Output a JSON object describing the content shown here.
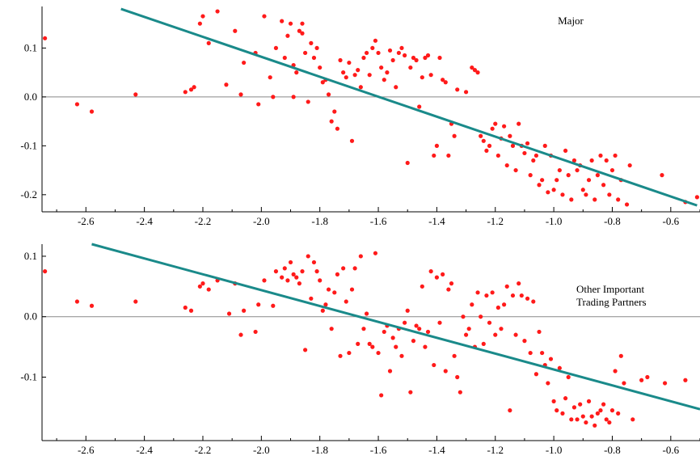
{
  "chart_data": [
    {
      "type": "scatter",
      "annotation": "Major",
      "xlim": [
        -2.75,
        -0.5
      ],
      "ylim": [
        -0.235,
        0.185
      ],
      "x_ticks": [
        -2.6,
        -2.4,
        -2.2,
        -2.0,
        -1.8,
        -1.6,
        -1.4,
        -1.2,
        -1.0,
        -0.8,
        -0.6
      ],
      "x_tick_labels": [
        "-2.6",
        "-2.4",
        "-2.2",
        "-2.0",
        "-1.8",
        "-1.6",
        "-1.4",
        "-1.2",
        "-1.0",
        "-0.8",
        "-0.6"
      ],
      "y_ticks": [
        0.1,
        0.0,
        -0.1,
        -0.2
      ],
      "y_tick_labels": [
        "0.1",
        "0.0",
        "-0.1",
        "-0.2"
      ],
      "zero_line": 0.0,
      "fit_line": [
        [
          -2.48,
          0.18
        ],
        [
          -0.51,
          -0.222
        ]
      ],
      "colors": {
        "points": "#ff1a1a",
        "fit": "#1a8a8a"
      },
      "points": [
        [
          -2.74,
          0.12
        ],
        [
          -2.63,
          -0.015
        ],
        [
          -2.58,
          -0.03
        ],
        [
          -2.43,
          0.005
        ],
        [
          -2.26,
          0.01
        ],
        [
          -2.24,
          0.015
        ],
        [
          -2.23,
          0.02
        ],
        [
          -2.21,
          0.15
        ],
        [
          -2.2,
          0.165
        ],
        [
          -2.18,
          0.11
        ],
        [
          -2.15,
          0.175
        ],
        [
          -2.12,
          0.025
        ],
        [
          -2.09,
          0.135
        ],
        [
          -2.06,
          0.07
        ],
        [
          -2.07,
          0.005
        ],
        [
          -2.02,
          0.09
        ],
        [
          -2.01,
          -0.015
        ],
        [
          -1.99,
          0.165
        ],
        [
          -1.97,
          0.04
        ],
        [
          -1.96,
          0.0
        ],
        [
          -1.95,
          0.1
        ],
        [
          -1.93,
          0.155
        ],
        [
          -1.92,
          0.08
        ],
        [
          -1.91,
          0.125
        ],
        [
          -1.9,
          0.15
        ],
        [
          -1.89,
          0.065
        ],
        [
          -1.89,
          0.0
        ],
        [
          -1.88,
          0.05
        ],
        [
          -1.87,
          0.135
        ],
        [
          -1.86,
          0.15
        ],
        [
          -1.86,
          0.13
        ],
        [
          -1.85,
          0.09
        ],
        [
          -1.84,
          -0.01
        ],
        [
          -1.83,
          0.11
        ],
        [
          -1.82,
          0.08
        ],
        [
          -1.81,
          0.1
        ],
        [
          -1.8,
          0.06
        ],
        [
          -1.79,
          0.03
        ],
        [
          -1.78,
          0.035
        ],
        [
          -1.77,
          0.005
        ],
        [
          -1.76,
          -0.05
        ],
        [
          -1.75,
          -0.03
        ],
        [
          -1.74,
          -0.065
        ],
        [
          -1.73,
          0.075
        ],
        [
          -1.72,
          0.05
        ],
        [
          -1.71,
          0.04
        ],
        [
          -1.7,
          0.07
        ],
        [
          -1.69,
          -0.09
        ],
        [
          -1.68,
          0.045
        ],
        [
          -1.67,
          0.055
        ],
        [
          -1.66,
          0.02
        ],
        [
          -1.65,
          0.08
        ],
        [
          -1.64,
          0.09
        ],
        [
          -1.63,
          0.045
        ],
        [
          -1.62,
          0.1
        ],
        [
          -1.61,
          0.115
        ],
        [
          -1.6,
          0.09
        ],
        [
          -1.59,
          0.06
        ],
        [
          -1.58,
          0.035
        ],
        [
          -1.57,
          0.05
        ],
        [
          -1.56,
          0.095
        ],
        [
          -1.55,
          0.075
        ],
        [
          -1.54,
          0.02
        ],
        [
          -1.53,
          0.09
        ],
        [
          -1.52,
          0.1
        ],
        [
          -1.51,
          0.085
        ],
        [
          -1.5,
          -0.135
        ],
        [
          -1.49,
          0.06
        ],
        [
          -1.48,
          0.08
        ],
        [
          -1.47,
          0.075
        ],
        [
          -1.46,
          -0.02
        ],
        [
          -1.45,
          0.04
        ],
        [
          -1.44,
          0.08
        ],
        [
          -1.43,
          0.085
        ],
        [
          -1.42,
          0.045
        ],
        [
          -1.41,
          -0.12
        ],
        [
          -1.4,
          -0.1
        ],
        [
          -1.39,
          0.08
        ],
        [
          -1.38,
          0.035
        ],
        [
          -1.37,
          0.03
        ],
        [
          -1.36,
          -0.12
        ],
        [
          -1.35,
          -0.055
        ],
        [
          -1.34,
          -0.08
        ],
        [
          -1.33,
          0.015
        ],
        [
          -1.3,
          0.01
        ],
        [
          -1.28,
          0.06
        ],
        [
          -1.27,
          0.055
        ],
        [
          -1.26,
          0.05
        ],
        [
          -1.25,
          -0.08
        ],
        [
          -1.24,
          -0.09
        ],
        [
          -1.23,
          -0.11
        ],
        [
          -1.22,
          -0.1
        ],
        [
          -1.21,
          -0.065
        ],
        [
          -1.2,
          -0.055
        ],
        [
          -1.19,
          -0.12
        ],
        [
          -1.18,
          -0.085
        ],
        [
          -1.17,
          -0.06
        ],
        [
          -1.16,
          -0.14
        ],
        [
          -1.15,
          -0.08
        ],
        [
          -1.14,
          -0.1
        ],
        [
          -1.13,
          -0.15
        ],
        [
          -1.12,
          -0.055
        ],
        [
          -1.11,
          -0.1
        ],
        [
          -1.1,
          -0.115
        ],
        [
          -1.09,
          -0.095
        ],
        [
          -1.08,
          -0.16
        ],
        [
          -1.07,
          -0.13
        ],
        [
          -1.06,
          -0.12
        ],
        [
          -1.05,
          -0.18
        ],
        [
          -1.04,
          -0.17
        ],
        [
          -1.03,
          -0.1
        ],
        [
          -1.02,
          -0.195
        ],
        [
          -1.01,
          -0.12
        ],
        [
          -1.0,
          -0.19
        ],
        [
          -0.99,
          -0.17
        ],
        [
          -0.98,
          -0.15
        ],
        [
          -0.97,
          -0.2
        ],
        [
          -0.96,
          -0.11
        ],
        [
          -0.95,
          -0.16
        ],
        [
          -0.94,
          -0.21
        ],
        [
          -0.93,
          -0.13
        ],
        [
          -0.92,
          -0.15
        ],
        [
          -0.91,
          -0.14
        ],
        [
          -0.9,
          -0.19
        ],
        [
          -0.89,
          -0.2
        ],
        [
          -0.88,
          -0.17
        ],
        [
          -0.87,
          -0.13
        ],
        [
          -0.86,
          -0.21
        ],
        [
          -0.85,
          -0.16
        ],
        [
          -0.84,
          -0.12
        ],
        [
          -0.83,
          -0.18
        ],
        [
          -0.82,
          -0.13
        ],
        [
          -0.81,
          -0.2
        ],
        [
          -0.8,
          -0.15
        ],
        [
          -0.79,
          -0.12
        ],
        [
          -0.78,
          -0.21
        ],
        [
          -0.77,
          -0.17
        ],
        [
          -0.75,
          -0.22
        ],
        [
          -0.74,
          -0.14
        ],
        [
          -0.63,
          -0.16
        ],
        [
          -0.55,
          -0.215
        ],
        [
          -0.51,
          -0.205
        ]
      ]
    },
    {
      "type": "scatter",
      "annotation": "Other Important Trading Partners",
      "annotation_lines": [
        "Other Important",
        "Trading Partners"
      ],
      "xlim": [
        -2.75,
        -0.5
      ],
      "ylim": [
        -0.205,
        0.12
      ],
      "x_ticks": [
        -2.6,
        -2.4,
        -2.2,
        -2.0,
        -1.8,
        -1.6,
        -1.4,
        -1.2,
        -1.0,
        -0.8,
        -0.6
      ],
      "x_tick_labels": [
        "-2.6",
        "-2.4",
        "-2.2",
        "-2.0",
        "-1.8",
        "-1.6",
        "-1.4",
        "-1.2",
        "-1.0",
        "-0.8",
        "-0.6"
      ],
      "y_ticks": [
        0.1,
        0.0,
        -0.1
      ],
      "y_tick_labels": [
        "0.1",
        "0.0",
        "-0.1"
      ],
      "zero_line": 0.0,
      "fit_line": [
        [
          -2.58,
          0.12
        ],
        [
          -0.5,
          -0.153
        ]
      ],
      "colors": {
        "points": "#ff1a1a",
        "fit": "#1a8a8a"
      },
      "points": [
        [
          -2.74,
          0.075
        ],
        [
          -2.63,
          0.025
        ],
        [
          -2.58,
          0.018
        ],
        [
          -2.43,
          0.025
        ],
        [
          -2.26,
          0.015
        ],
        [
          -2.24,
          0.01
        ],
        [
          -2.21,
          0.05
        ],
        [
          -2.2,
          0.055
        ],
        [
          -2.18,
          0.045
        ],
        [
          -2.15,
          0.06
        ],
        [
          -2.11,
          0.005
        ],
        [
          -2.09,
          0.055
        ],
        [
          -2.06,
          0.01
        ],
        [
          -2.07,
          -0.03
        ],
        [
          -2.02,
          -0.025
        ],
        [
          -2.01,
          0.02
        ],
        [
          -1.99,
          0.06
        ],
        [
          -1.96,
          0.018
        ],
        [
          -1.95,
          0.075
        ],
        [
          -1.93,
          0.065
        ],
        [
          -1.92,
          0.08
        ],
        [
          -1.91,
          0.06
        ],
        [
          -1.9,
          0.09
        ],
        [
          -1.89,
          0.07
        ],
        [
          -1.88,
          0.065
        ],
        [
          -1.87,
          0.055
        ],
        [
          -1.86,
          0.075
        ],
        [
          -1.85,
          -0.055
        ],
        [
          -1.84,
          0.1
        ],
        [
          -1.83,
          0.03
        ],
        [
          -1.82,
          0.09
        ],
        [
          -1.81,
          0.075
        ],
        [
          -1.8,
          0.06
        ],
        [
          -1.79,
          0.01
        ],
        [
          -1.78,
          0.02
        ],
        [
          -1.77,
          0.045
        ],
        [
          -1.76,
          -0.02
        ],
        [
          -1.75,
          0.04
        ],
        [
          -1.74,
          0.07
        ],
        [
          -1.73,
          -0.065
        ],
        [
          -1.72,
          0.08
        ],
        [
          -1.71,
          0.025
        ],
        [
          -1.7,
          -0.06
        ],
        [
          -1.69,
          0.045
        ],
        [
          -1.68,
          0.08
        ],
        [
          -1.67,
          -0.045
        ],
        [
          -1.66,
          0.1
        ],
        [
          -1.65,
          -0.02
        ],
        [
          -1.64,
          0.005
        ],
        [
          -1.63,
          -0.045
        ],
        [
          -1.62,
          -0.05
        ],
        [
          -1.61,
          0.105
        ],
        [
          -1.6,
          -0.06
        ],
        [
          -1.59,
          -0.13
        ],
        [
          -1.58,
          -0.025
        ],
        [
          -1.57,
          -0.015
        ],
        [
          -1.56,
          -0.09
        ],
        [
          -1.55,
          -0.035
        ],
        [
          -1.54,
          -0.05
        ],
        [
          -1.53,
          -0.02
        ],
        [
          -1.52,
          -0.065
        ],
        [
          -1.51,
          -0.01
        ],
        [
          -1.5,
          0.01
        ],
        [
          -1.49,
          -0.125
        ],
        [
          -1.48,
          -0.04
        ],
        [
          -1.47,
          -0.015
        ],
        [
          -1.46,
          -0.02
        ],
        [
          -1.45,
          0.05
        ],
        [
          -1.44,
          -0.05
        ],
        [
          -1.43,
          -0.025
        ],
        [
          -1.42,
          0.075
        ],
        [
          -1.41,
          -0.08
        ],
        [
          -1.4,
          0.065
        ],
        [
          -1.39,
          -0.01
        ],
        [
          -1.38,
          0.07
        ],
        [
          -1.37,
          -0.09
        ],
        [
          -1.36,
          0.045
        ],
        [
          -1.35,
          0.055
        ],
        [
          -1.34,
          -0.065
        ],
        [
          -1.33,
          -0.1
        ],
        [
          -1.32,
          -0.125
        ],
        [
          -1.31,
          0.0
        ],
        [
          -1.3,
          -0.03
        ],
        [
          -1.29,
          -0.02
        ],
        [
          -1.28,
          0.02
        ],
        [
          -1.27,
          -0.05
        ],
        [
          -1.26,
          0.04
        ],
        [
          -1.25,
          0.0
        ],
        [
          -1.24,
          -0.045
        ],
        [
          -1.23,
          0.035
        ],
        [
          -1.22,
          -0.01
        ],
        [
          -1.21,
          0.04
        ],
        [
          -1.2,
          -0.03
        ],
        [
          -1.19,
          0.015
        ],
        [
          -1.18,
          -0.02
        ],
        [
          -1.17,
          0.02
        ],
        [
          -1.16,
          0.05
        ],
        [
          -1.15,
          -0.155
        ],
        [
          -1.14,
          0.035
        ],
        [
          -1.13,
          -0.03
        ],
        [
          -1.12,
          0.055
        ],
        [
          -1.11,
          0.035
        ],
        [
          -1.1,
          -0.04
        ],
        [
          -1.09,
          0.03
        ],
        [
          -1.08,
          -0.06
        ],
        [
          -1.07,
          0.025
        ],
        [
          -1.06,
          -0.095
        ],
        [
          -1.05,
          -0.025
        ],
        [
          -1.04,
          -0.06
        ],
        [
          -1.03,
          -0.08
        ],
        [
          -1.02,
          -0.11
        ],
        [
          -1.01,
          -0.07
        ],
        [
          -1.0,
          -0.14
        ],
        [
          -0.99,
          -0.155
        ],
        [
          -0.98,
          -0.085
        ],
        [
          -0.97,
          -0.16
        ],
        [
          -0.96,
          -0.135
        ],
        [
          -0.95,
          -0.1
        ],
        [
          -0.94,
          -0.17
        ],
        [
          -0.93,
          -0.15
        ],
        [
          -0.92,
          -0.17
        ],
        [
          -0.91,
          -0.145
        ],
        [
          -0.9,
          -0.165
        ],
        [
          -0.89,
          -0.175
        ],
        [
          -0.88,
          -0.14
        ],
        [
          -0.87,
          -0.165
        ],
        [
          -0.86,
          -0.18
        ],
        [
          -0.85,
          -0.16
        ],
        [
          -0.84,
          -0.155
        ],
        [
          -0.83,
          -0.145
        ],
        [
          -0.82,
          -0.17
        ],
        [
          -0.81,
          -0.175
        ],
        [
          -0.8,
          -0.155
        ],
        [
          -0.79,
          -0.09
        ],
        [
          -0.78,
          -0.16
        ],
        [
          -0.77,
          -0.065
        ],
        [
          -0.76,
          -0.11
        ],
        [
          -0.73,
          -0.17
        ],
        [
          -0.7,
          -0.105
        ],
        [
          -0.68,
          -0.1
        ],
        [
          -0.62,
          -0.11
        ],
        [
          -0.55,
          -0.105
        ]
      ]
    }
  ]
}
